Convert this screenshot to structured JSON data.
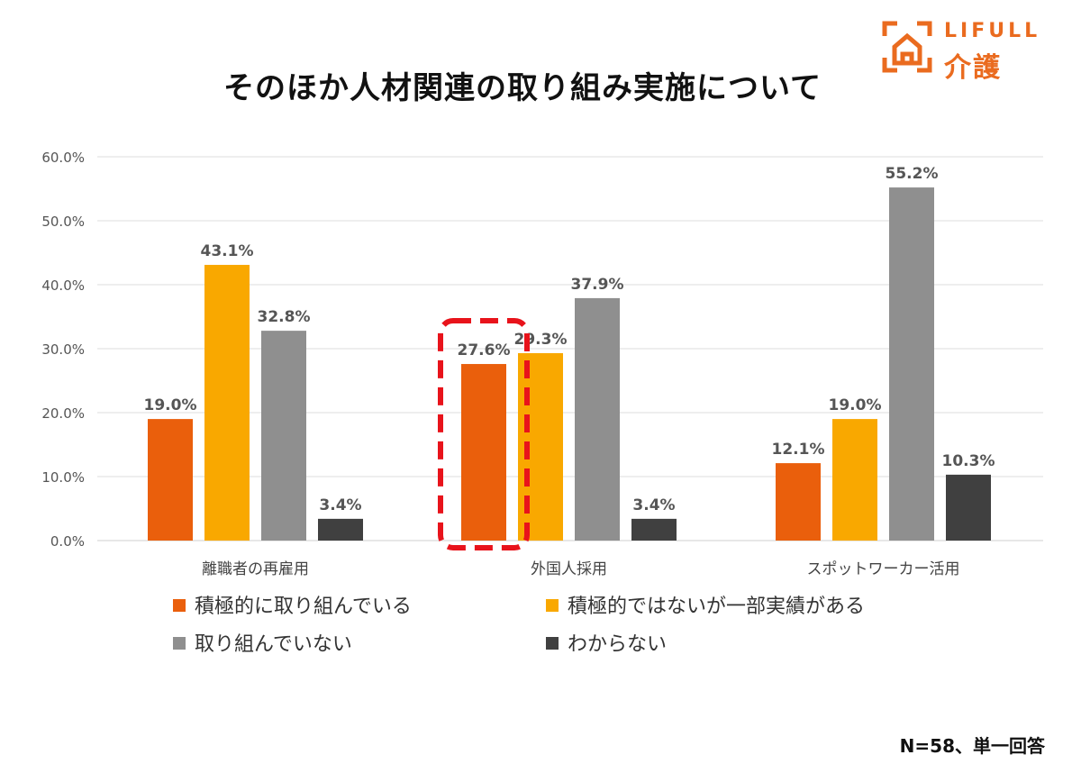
{
  "title": "そのほか人材関連の取り組み実施について",
  "logo": {
    "brand": "LIFULL",
    "service": "介護"
  },
  "note": "N=58、単一回答",
  "colors": {
    "series": [
      "#ea5f0c",
      "#f9a800",
      "#8f8f8f",
      "#404040"
    ],
    "highlight": "#e8131b",
    "grid": "#dddddd",
    "axis_text": "#555555",
    "label_text": "#555555"
  },
  "chart_data": {
    "type": "bar",
    "title": "そのほか人材関連の取り組み実施について",
    "categories": [
      "離職者の再雇用",
      "外国人採用",
      "スポットワーカー活用"
    ],
    "series": [
      {
        "name": "積極的に取り組んでいる",
        "values": [
          19.0,
          27.6,
          12.1
        ]
      },
      {
        "name": "積極的ではないが一部実績がある",
        "values": [
          43.1,
          29.3,
          19.0
        ]
      },
      {
        "name": "取り組んでいない",
        "values": [
          32.8,
          37.9,
          55.2
        ]
      },
      {
        "name": "わからない",
        "values": [
          3.4,
          3.4,
          10.3
        ]
      }
    ],
    "yticks": [
      "0.0%",
      "10.0%",
      "20.0%",
      "30.0%",
      "40.0%",
      "50.0%",
      "60.0%"
    ],
    "ylim": [
      0,
      60
    ],
    "unit": "%",
    "grid": true,
    "legend_position": "bottom",
    "highlight": {
      "category_index": 1,
      "series_index": 0
    }
  }
}
